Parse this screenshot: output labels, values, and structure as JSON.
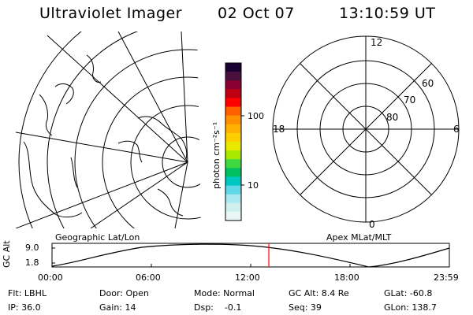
{
  "header": {
    "instrument": "Ultraviolet Imager",
    "date": "02 Oct 07",
    "time": "13:10:59 UT"
  },
  "color_bar": {
    "unit_label": "photon cm⁻²s⁻¹",
    "ticks": [
      "100",
      "10"
    ],
    "colors": [
      "#1a0030",
      "#4a0f3c",
      "#8a0030",
      "#c00010",
      "#ff0000",
      "#ff6000",
      "#ff9000",
      "#ffb000",
      "#ffd000",
      "#e8e800",
      "#a8e800",
      "#40d840",
      "#00c060",
      "#00c8c0",
      "#60d8e8",
      "#a8e8f0",
      "#d0f0f0",
      "#e8f6f6"
    ]
  },
  "geo_panel": {
    "label": "Geographic Lat/Lon"
  },
  "polar_panel": {
    "label": "Apex MLat/MLT",
    "mlt_labels": {
      "top": "12",
      "left": "18",
      "right": "6",
      "bottom": "0"
    },
    "lat_labels": [
      "60",
      "70",
      "80"
    ]
  },
  "altitude_strip": {
    "axis_label": "GC Alt",
    "y_ticks": [
      "9.0",
      "1.8"
    ],
    "x_ticks": [
      "00:00",
      "06:00",
      "12:00",
      "18:00",
      "23:59"
    ],
    "current_time_marker": "13:10:59",
    "marker_color": "#ff0000"
  },
  "info": {
    "row1": [
      "Flt: LBHL",
      "Door: Open",
      "Mode: Normal",
      "GC Alt: 8.4 Re",
      "GLat: -60.8"
    ],
    "row2": [
      "IP: 36.0",
      "Gain: 14",
      "Dsp:    -0.1",
      "Seq: 39",
      "GLon: 138.7"
    ]
  }
}
